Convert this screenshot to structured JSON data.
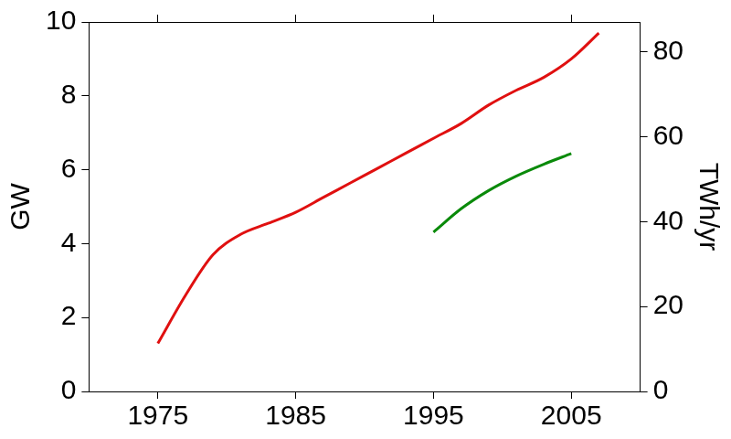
{
  "chart_data": {
    "type": "line",
    "x": [
      1975,
      1977,
      1979,
      1981,
      1983,
      1985,
      1987,
      1989,
      1991,
      1993,
      1995,
      1997,
      1999,
      2001,
      2003,
      2005,
      2007
    ],
    "series": [
      {
        "color": "#e01010",
        "values": [
          1.3,
          2.6,
          3.7,
          4.25,
          4.55,
          4.85,
          5.25,
          5.65,
          6.05,
          6.45,
          6.85,
          7.25,
          7.75,
          8.15,
          8.5,
          9.0,
          9.7
        ]
      },
      {
        "color": "#0a8a0a",
        "axis": "y2",
        "values": [
          null,
          null,
          null,
          null,
          null,
          null,
          null,
          null,
          null,
          null,
          37.5,
          43,
          47.3,
          50.7,
          53.5,
          56,
          null
        ]
      }
    ],
    "y_label": "GW",
    "y2_label": "TWh/yr",
    "xlim": [
      1970,
      2010
    ],
    "xticks": [
      1975,
      1985,
      1995,
      2005
    ],
    "ylim": [
      0,
      10
    ],
    "yticks": [
      0,
      2,
      4,
      6,
      8,
      10
    ],
    "y2lim": [
      0,
      87
    ],
    "y2ticks": [
      0,
      20,
      40,
      60,
      80
    ],
    "grid": false
  }
}
